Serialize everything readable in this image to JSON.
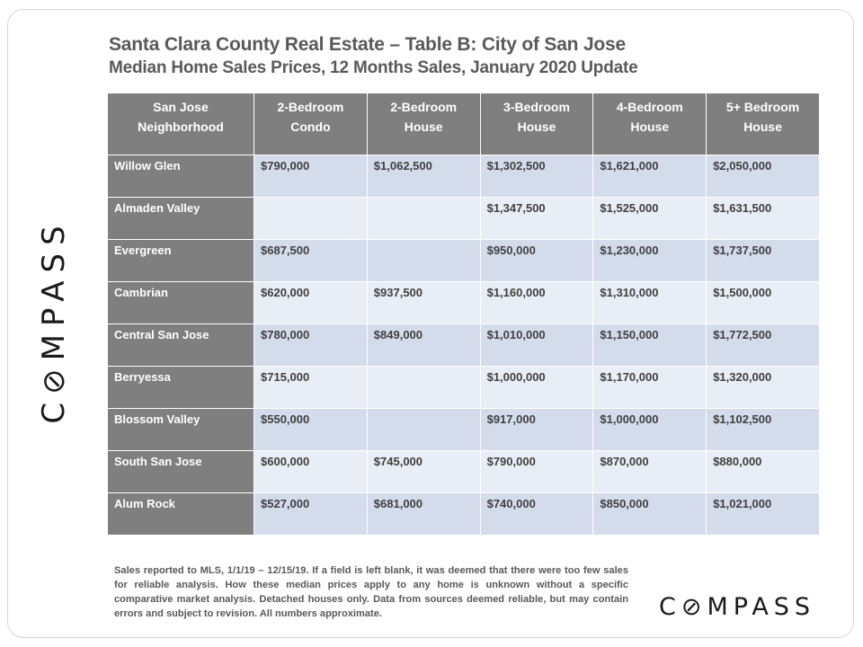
{
  "title": "Santa Clara County Real Estate – Table B: City of San Jose",
  "subtitle": "Median Home Sales Prices, 12 Months Sales, January 2020 Update",
  "table": {
    "headers": [
      [
        "San Jose",
        "Neighborhood"
      ],
      [
        "2-Bedroom",
        "Condo"
      ],
      [
        "2-Bedroom",
        "House"
      ],
      [
        "3-Bedroom",
        "House"
      ],
      [
        "4-Bedroom",
        "House"
      ],
      [
        "5+ Bedroom",
        "House"
      ]
    ],
    "rows": [
      {
        "name": "Willow Glen",
        "values": [
          "$790,000",
          "$1,062,500",
          "$1,302,500",
          "$1,621,000",
          "$2,050,000"
        ]
      },
      {
        "name": "Almaden Valley",
        "values": [
          "",
          "",
          "$1,347,500",
          "$1,525,000",
          "$1,631,500"
        ]
      },
      {
        "name": "Evergreen",
        "values": [
          "$687,500",
          "",
          "$950,000",
          "$1,230,000",
          "$1,737,500"
        ]
      },
      {
        "name": "Cambrian",
        "values": [
          "$620,000",
          "$937,500",
          "$1,160,000",
          "$1,310,000",
          "$1,500,000"
        ]
      },
      {
        "name": "Central San Jose",
        "values": [
          "$780,000",
          "$849,000",
          "$1,010,000",
          "$1,150,000",
          "$1,772,500"
        ]
      },
      {
        "name": "Berryessa",
        "values": [
          "$715,000",
          "",
          "$1,000,000",
          "$1,170,000",
          "$1,320,000"
        ]
      },
      {
        "name": "Blossom Valley",
        "values": [
          "$550,000",
          "",
          "$917,000",
          "$1,000,000",
          "$1,102,500"
        ]
      },
      {
        "name": "South San Jose",
        "values": [
          "$600,000",
          "$745,000",
          "$790,000",
          "$870,000",
          "$880,000"
        ]
      },
      {
        "name": "Alum Rock",
        "values": [
          "$527,000",
          "$681,000",
          "$740,000",
          "$850,000",
          "$1,021,000"
        ]
      }
    ]
  },
  "footnote": "Sales reported to MLS, 1/1/19 – 12/15/19. If a field is left blank, it was deemed that there were too few sales for reliable analysis. How these median prices apply to any home is unknown without a specific comparative market analysis. Detached houses only. Data from sources deemed reliable, but may contain errors and subject to revision. All numbers approximate.",
  "brand": {
    "logo_text": "C⊘MPASS",
    "colors": {
      "header_gray": "#7f7f7f",
      "cell_blue_dark": "#d4dcec",
      "cell_blue_light": "#e9edf5",
      "title_gray": "#595959"
    }
  }
}
